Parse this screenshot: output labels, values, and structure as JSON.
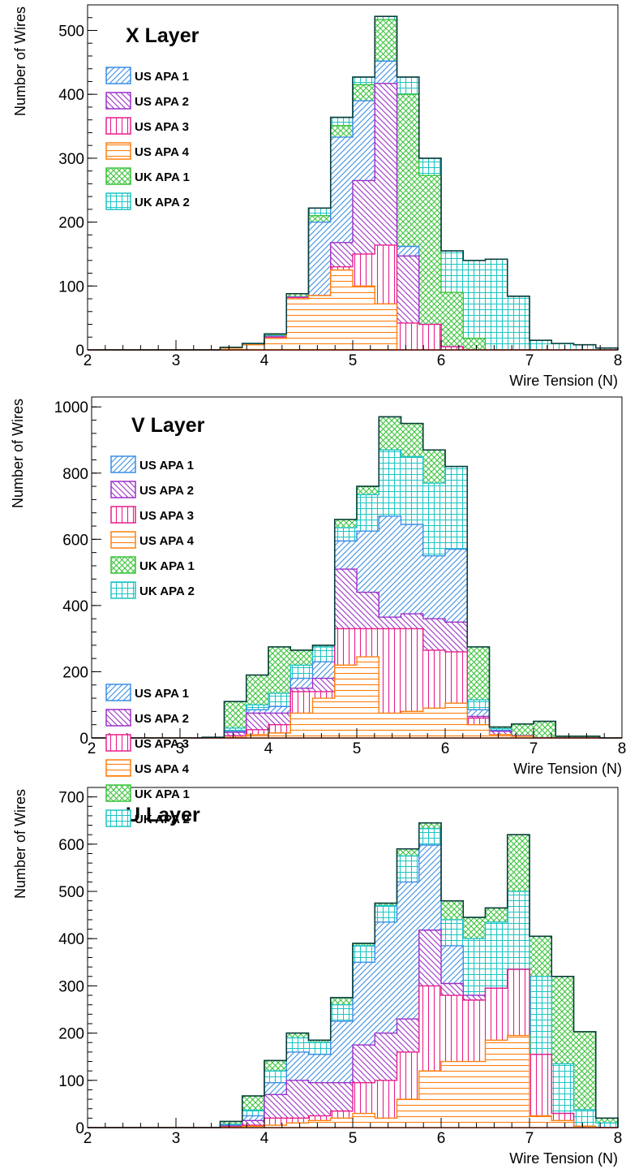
{
  "chart_data": [
    {
      "type": "bar",
      "title": "X Layer",
      "xlabel": "Wire Tension (N)",
      "ylabel": "Number of Wires",
      "xlim": [
        2,
        8
      ],
      "ylim": [
        0,
        540
      ],
      "xticks": [
        "2",
        "3",
        "4",
        "5",
        "6",
        "7",
        "8"
      ],
      "yticks": [
        "0",
        "100",
        "200",
        "300",
        "400",
        "500"
      ],
      "bin_edges": [
        2.0,
        2.25,
        2.5,
        2.75,
        3.0,
        3.25,
        3.5,
        3.75,
        4.0,
        4.25,
        4.5,
        4.75,
        5.0,
        5.25,
        5.5,
        5.75,
        6.0,
        6.25,
        6.5,
        6.75,
        7.0,
        7.25,
        7.5,
        7.75,
        8.0
      ],
      "stacked": true,
      "legend_position": "top-left",
      "series": [
        {
          "name": "US APA 4",
          "color": "#ff7f0e",
          "pattern": "hlines",
          "values": [
            0,
            0,
            0,
            0,
            0,
            0,
            3,
            8,
            18,
            80,
            85,
            125,
            100,
            72,
            0,
            0,
            0,
            0,
            0,
            0,
            0,
            0,
            0,
            0
          ]
        },
        {
          "name": "US APA 3",
          "color": "#e81f8c",
          "pattern": "vlines",
          "values": [
            0,
            0,
            0,
            0,
            0,
            0,
            0,
            0,
            2,
            2,
            0,
            5,
            50,
            92,
            42,
            40,
            5,
            0,
            0,
            0,
            0,
            0,
            0,
            0
          ]
        },
        {
          "name": "US APA 2",
          "color": "#9b30c8",
          "pattern": "diag-down",
          "values": [
            0,
            0,
            0,
            0,
            0,
            0,
            0,
            0,
            0,
            0,
            0,
            38,
            115,
            253,
            105,
            0,
            0,
            0,
            0,
            0,
            0,
            0,
            0,
            0
          ]
        },
        {
          "name": "US APA 1",
          "color": "#3a8ee6",
          "pattern": "diag-up",
          "values": [
            0,
            0,
            0,
            0,
            0,
            0,
            1,
            2,
            2,
            1,
            115,
            165,
            125,
            35,
            15,
            0,
            0,
            0,
            0,
            0,
            0,
            0,
            0,
            0
          ]
        },
        {
          "name": "UK APA 1",
          "color": "#3ac43a",
          "pattern": "cross",
          "values": [
            0,
            0,
            0,
            0,
            0,
            0,
            0,
            0,
            1,
            5,
            10,
            18,
            25,
            65,
            238,
            233,
            85,
            18,
            0,
            0,
            0,
            0,
            0,
            0
          ]
        },
        {
          "name": "UK APA 2",
          "color": "#1ec4c4",
          "pattern": "grid",
          "values": [
            0,
            0,
            0,
            0,
            0,
            0,
            0,
            0,
            2,
            0,
            12,
            13,
            12,
            5,
            27,
            27,
            65,
            122,
            142,
            84,
            15,
            10,
            8,
            3
          ]
        }
      ]
    },
    {
      "type": "bar",
      "title": "V Layer",
      "xlabel": "Wire Tension (N)",
      "ylabel": "Number of Wires",
      "xlim": [
        2,
        8
      ],
      "ylim": [
        0,
        1030
      ],
      "xticks": [
        "2",
        "3",
        "4",
        "5",
        "6",
        "7",
        "8"
      ],
      "yticks": [
        "0",
        "200",
        "400",
        "600",
        "800",
        "1000"
      ],
      "bin_edges": [
        2.0,
        2.25,
        2.5,
        2.75,
        3.0,
        3.25,
        3.5,
        3.75,
        4.0,
        4.25,
        4.5,
        4.75,
        5.0,
        5.25,
        5.5,
        5.75,
        6.0,
        6.25,
        6.5,
        6.75,
        7.0,
        7.25,
        7.5,
        7.75,
        8.0
      ],
      "stacked": true,
      "legend_position": "top-left",
      "series": [
        {
          "name": "US APA 4",
          "color": "#ff7f0e",
          "pattern": "hlines",
          "values": [
            0,
            0,
            0,
            0,
            0,
            0,
            2,
            10,
            15,
            75,
            120,
            220,
            245,
            75,
            80,
            90,
            105,
            40,
            10,
            5,
            0,
            0,
            0,
            0
          ]
        },
        {
          "name": "US APA 3",
          "color": "#e81f8c",
          "pattern": "vlines",
          "values": [
            0,
            0,
            0,
            0,
            0,
            0,
            5,
            15,
            25,
            65,
            20,
            110,
            85,
            255,
            250,
            175,
            155,
            20,
            0,
            0,
            0,
            0,
            0,
            0
          ]
        },
        {
          "name": "US APA 2",
          "color": "#9b30c8",
          "pattern": "diag-down",
          "values": [
            0,
            0,
            0,
            0,
            0,
            0,
            10,
            50,
            35,
            10,
            40,
            180,
            110,
            35,
            45,
            95,
            90,
            5,
            10,
            2,
            0,
            0,
            0,
            0
          ]
        },
        {
          "name": "US APA 1",
          "color": "#3a8ee6",
          "pattern": "diag-up",
          "values": [
            0,
            0,
            0,
            0,
            0,
            0,
            3,
            10,
            20,
            30,
            50,
            85,
            185,
            305,
            270,
            190,
            220,
            20,
            3,
            0,
            0,
            0,
            0,
            0
          ]
        },
        {
          "name": "UK APA 2",
          "color": "#1ec4c4",
          "pattern": "grid",
          "values": [
            0,
            0,
            0,
            0,
            0,
            0,
            10,
            15,
            40,
            40,
            45,
            40,
            110,
            200,
            205,
            220,
            250,
            30,
            5,
            0,
            0,
            0,
            0,
            0
          ]
        },
        {
          "name": "UK APA 1",
          "color": "#3ac43a",
          "pattern": "cross",
          "values": [
            0,
            0,
            0,
            0,
            0,
            2,
            80,
            90,
            140,
            45,
            5,
            25,
            25,
            100,
            100,
            100,
            0,
            160,
            5,
            35,
            50,
            5,
            5,
            0
          ]
        }
      ]
    },
    {
      "type": "bar",
      "title": "U Layer",
      "xlabel": "Wire Tension (N)",
      "ylabel": "Number of Wires",
      "xlim": [
        2,
        8
      ],
      "ylim": [
        0,
        720
      ],
      "xticks": [
        "2",
        "3",
        "4",
        "5",
        "6",
        "7",
        "8"
      ],
      "yticks": [
        "0",
        "100",
        "200",
        "300",
        "400",
        "500",
        "600",
        "700"
      ],
      "bin_edges": [
        2.0,
        2.25,
        2.5,
        2.75,
        3.0,
        3.25,
        3.5,
        3.75,
        4.0,
        4.25,
        4.5,
        4.75,
        5.0,
        5.25,
        5.5,
        5.75,
        6.0,
        6.25,
        6.5,
        6.75,
        7.0,
        7.25,
        7.5,
        7.75,
        8.0
      ],
      "stacked": true,
      "legend_position": "top-left",
      "series": [
        {
          "name": "US APA 4",
          "color": "#ff7f0e",
          "pattern": "hlines",
          "values": [
            0,
            0,
            0,
            0,
            0,
            0,
            1,
            3,
            5,
            10,
            15,
            20,
            30,
            20,
            60,
            120,
            140,
            140,
            185,
            195,
            25,
            15,
            3,
            0
          ]
        },
        {
          "name": "US APA 3",
          "color": "#e81f8c",
          "pattern": "vlines",
          "values": [
            0,
            0,
            0,
            0,
            0,
            0,
            1,
            2,
            15,
            10,
            10,
            15,
            65,
            80,
            100,
            180,
            140,
            130,
            110,
            140,
            130,
            15,
            0,
            0
          ]
        },
        {
          "name": "US APA 2",
          "color": "#9b30c8",
          "pattern": "diag-down",
          "values": [
            0,
            0,
            0,
            0,
            0,
            0,
            1,
            10,
            50,
            80,
            70,
            60,
            80,
            100,
            70,
            118,
            25,
            10,
            0,
            0,
            0,
            0,
            0,
            0
          ]
        },
        {
          "name": "US APA 1",
          "color": "#3a8ee6",
          "pattern": "diag-up",
          "values": [
            0,
            0,
            0,
            0,
            0,
            0,
            2,
            10,
            25,
            60,
            60,
            130,
            175,
            235,
            290,
            180,
            80,
            0,
            0,
            0,
            0,
            0,
            0,
            0
          ]
        },
        {
          "name": "UK APA 2",
          "color": "#1ec4c4",
          "pattern": "grid",
          "values": [
            0,
            0,
            0,
            0,
            0,
            0,
            2,
            12,
            25,
            30,
            25,
            35,
            35,
            35,
            55,
            35,
            55,
            120,
            140,
            165,
            165,
            105,
            35,
            10
          ]
        },
        {
          "name": "UK APA 1",
          "color": "#3ac43a",
          "pattern": "cross",
          "values": [
            0,
            0,
            0,
            0,
            0,
            0,
            6,
            30,
            22,
            10,
            5,
            15,
            5,
            5,
            15,
            12,
            40,
            45,
            30,
            120,
            85,
            185,
            165,
            10
          ]
        }
      ]
    }
  ]
}
